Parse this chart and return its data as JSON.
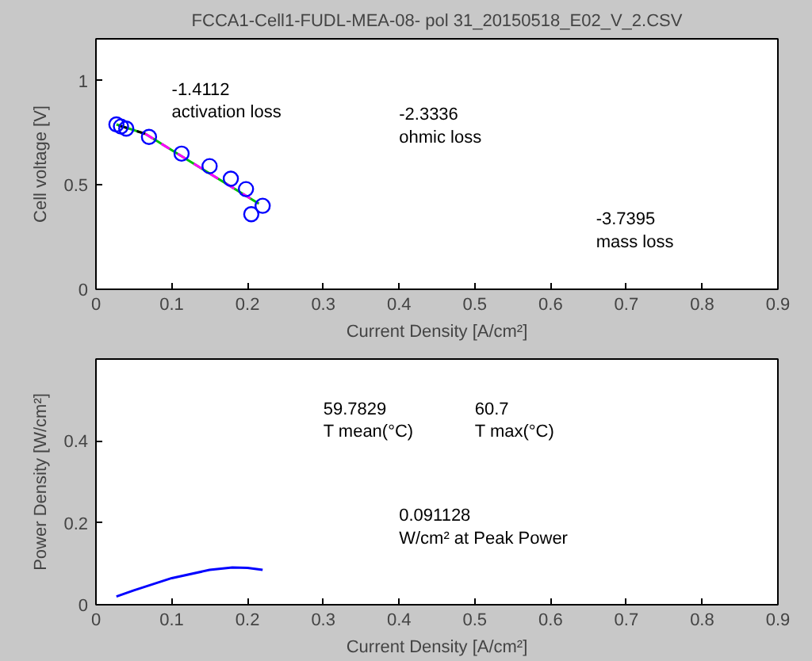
{
  "chart_data": [
    {
      "type": "scatter",
      "title": "FCCA1-Cell1-FUDL-MEA-08- pol 31_20150518_E02_V_2.CSV",
      "xlabel": "Current Density [A/cm²]",
      "ylabel": "Cell voltage [V]",
      "xlim": [
        0,
        0.9
      ],
      "xticks": [
        0,
        0.1,
        0.2,
        0.3,
        0.4,
        0.5,
        0.6,
        0.7,
        0.8,
        0.9
      ],
      "ylim": [
        0,
        1.2
      ],
      "yticks": [
        0,
        0.5,
        1
      ],
      "annotations": [
        "-1.4112\nactivation loss",
        "-2.3336\nohmic loss",
        "-3.7395\nmass loss"
      ],
      "series": [
        {
          "type": "line",
          "color": "#00c000",
          "line_style": "solid",
          "x": [
            0.027,
            0.065,
            0.215
          ],
          "values": [
            0.79,
            0.745,
            0.41
          ]
        },
        {
          "type": "line",
          "color": "#000000",
          "line_style": "dashed",
          "x": [
            0.03,
            0.065
          ],
          "values": [
            0.785,
            0.745
          ]
        },
        {
          "type": "line",
          "color": "#ff00ff",
          "line_style": "dashed",
          "x": [
            0.065,
            0.215
          ],
          "values": [
            0.745,
            0.41
          ]
        },
        {
          "type": "scatter",
          "marker": "circle",
          "color": "#0000ff",
          "x": [
            0.027,
            0.033,
            0.04,
            0.07,
            0.113,
            0.15,
            0.178,
            0.198,
            0.205,
            0.22
          ],
          "values": [
            0.79,
            0.78,
            0.77,
            0.73,
            0.65,
            0.59,
            0.53,
            0.48,
            0.36,
            0.4
          ]
        }
      ]
    },
    {
      "type": "line",
      "xlabel": "Current Density [A/cm²]",
      "ylabel": "Power Density [W/cm²]",
      "xlim": [
        0,
        0.9
      ],
      "xticks": [
        0,
        0.1,
        0.2,
        0.3,
        0.4,
        0.5,
        0.6,
        0.7,
        0.8,
        0.9
      ],
      "ylim": [
        0,
        0.6
      ],
      "yticks": [
        0,
        0.2,
        0.4
      ],
      "annotations": [
        "59.7829\nT mean(°C)",
        "60.7\nT max(°C)",
        "0.091128\nW/cm² at Peak Power"
      ],
      "series": [
        {
          "color": "#0000ff",
          "line_style": "solid",
          "x": [
            0.027,
            0.05,
            0.1,
            0.15,
            0.18,
            0.2,
            0.22
          ],
          "values": [
            0.02,
            0.035,
            0.065,
            0.085,
            0.091,
            0.09,
            0.085
          ]
        }
      ]
    }
  ]
}
